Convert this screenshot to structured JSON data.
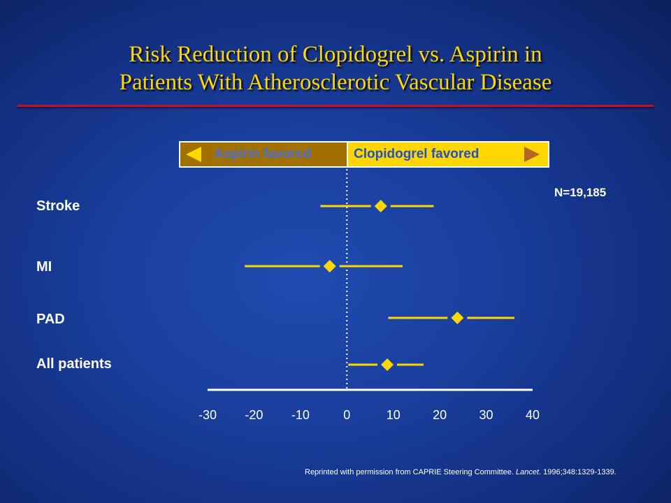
{
  "title_line1": "Risk Reduction of Clopidogrel vs. Aspirin in",
  "title_line2": "Patients With Atherosclerotic Vascular Disease",
  "legend": {
    "left_label": "Aspirin favored",
    "right_label": "Clopidogrel favored"
  },
  "n_label": "N=19,185",
  "credit": {
    "prefix": "Reprinted with permission from CAPRIE Steering Committee. ",
    "journal": "Lancet",
    "suffix": ". 1996;348:1329-1339."
  },
  "colors": {
    "title": "#ffd700",
    "rule": "#c8102e",
    "marker": "#ffd700",
    "axis": "#ffffff"
  },
  "chart_data": {
    "type": "forest",
    "title": "",
    "xlabel": "",
    "ylabel": "",
    "xlim": [
      -30,
      40
    ],
    "xticks": [
      -30,
      -20,
      -10,
      0,
      10,
      20,
      30,
      40
    ],
    "reference_line": 0,
    "categories": [
      "Stroke",
      "MI",
      "PAD",
      "All patients"
    ],
    "estimates": [
      7.3,
      -3.7,
      23.8,
      8.7
    ],
    "ci_low": [
      -5.7,
      -22.0,
      8.9,
      0.3
    ],
    "ci_high": [
      18.7,
      12.0,
      36.1,
      16.5
    ]
  }
}
